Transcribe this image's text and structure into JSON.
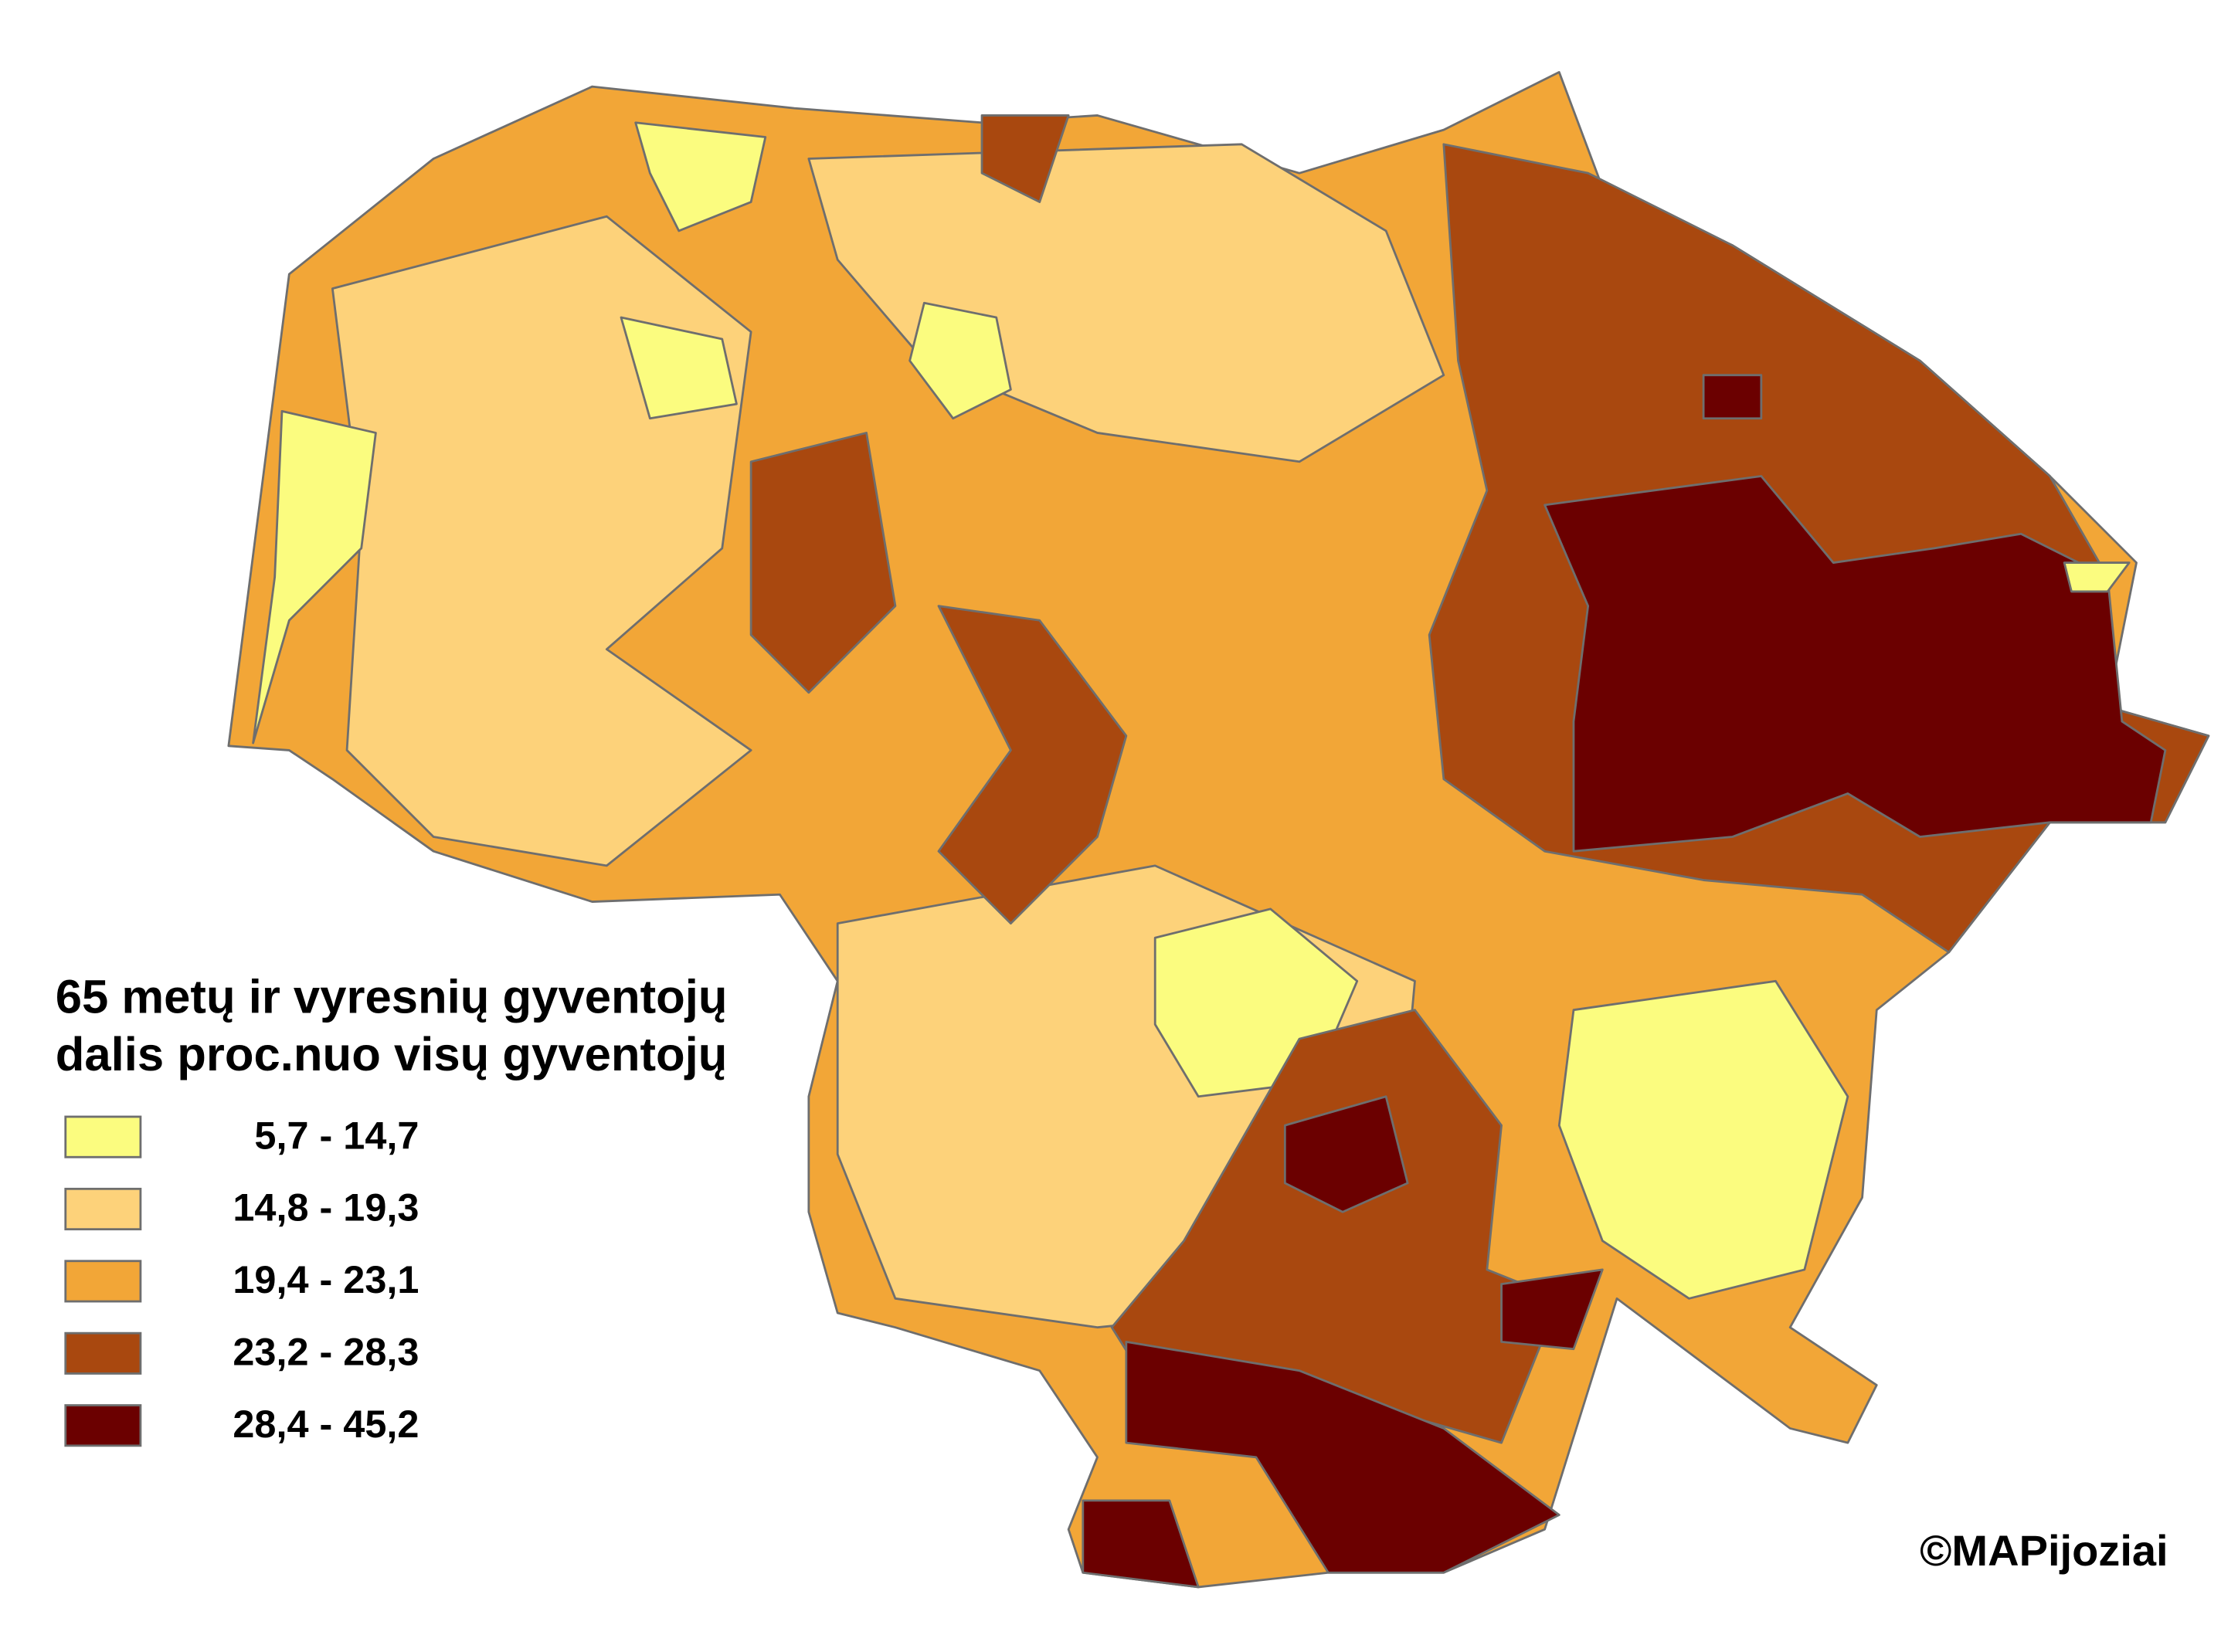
{
  "legend": {
    "title_lines": [
      "65 metų ir vyresnių gyventojų",
      "dalis proc.nuo visų gyventojų"
    ],
    "items": [
      {
        "label": "5,7 - 14,7",
        "color": "#fbfc7f"
      },
      {
        "label": "14,8 - 19,3",
        "color": "#fdd27a"
      },
      {
        "label": "19,4 - 23,1",
        "color": "#f2a637"
      },
      {
        "label": "23,2 - 28,3",
        "color": "#a9480f"
      },
      {
        "label": "28,4 - 45,2",
        "color": "#6b0000"
      }
    ]
  },
  "credit": "©MAPijoziai"
}
